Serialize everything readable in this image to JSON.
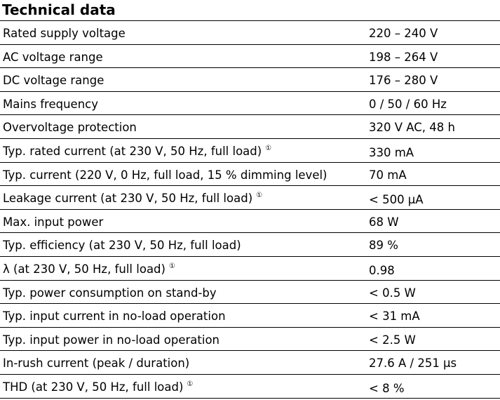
{
  "title": "Technical data",
  "rows": [
    {
      "parameter": "Rated supply voltage",
      "value": "220 – 240 V",
      "note": ""
    },
    {
      "parameter": "AC voltage range",
      "value": "198 – 264 V",
      "note": ""
    },
    {
      "parameter": "DC voltage range",
      "value": "176 – 280 V",
      "note": ""
    },
    {
      "parameter": "Mains frequency",
      "value": "0 / 50 / 60 Hz",
      "note": ""
    },
    {
      "parameter": "Overvoltage protection",
      "value": "320 V AC, 48 h",
      "note": ""
    },
    {
      "parameter": "Typ. rated current (at 230 V, 50 Hz, full load)",
      "value": "330 mA",
      "note": "①"
    },
    {
      "parameter": "Typ. current (220 V, 0 Hz, full load, 15 % dimming level)",
      "value": "70 mA",
      "note": ""
    },
    {
      "parameter": "Leakage current (at 230 V, 50 Hz, full load)",
      "value": "< 500 µA",
      "note": "①"
    },
    {
      "parameter": "Max. input power",
      "value": "68 W",
      "note": ""
    },
    {
      "parameter": "Typ. efficiency (at 230 V, 50 Hz, full load)",
      "value": "89 %",
      "note": ""
    },
    {
      "parameter": "λ (at 230 V, 50 Hz, full load)",
      "value": "0.98",
      "note": "①"
    },
    {
      "parameter": "Typ. power consumption on stand-by",
      "value": "< 0.5 W",
      "note": ""
    },
    {
      "parameter": "Typ. input current in no-load operation",
      "value": "< 31 mA",
      "note": ""
    },
    {
      "parameter": "Typ. input power in no-load operation",
      "value": "< 2.5 W",
      "note": ""
    },
    {
      "parameter": "In-rush current (peak / duration)",
      "value": "27.6 A / 251 µs",
      "note": ""
    },
    {
      "parameter": "THD (at 230 V, 50 Hz, full load)",
      "value": "< 8 %",
      "note": "①"
    }
  ]
}
